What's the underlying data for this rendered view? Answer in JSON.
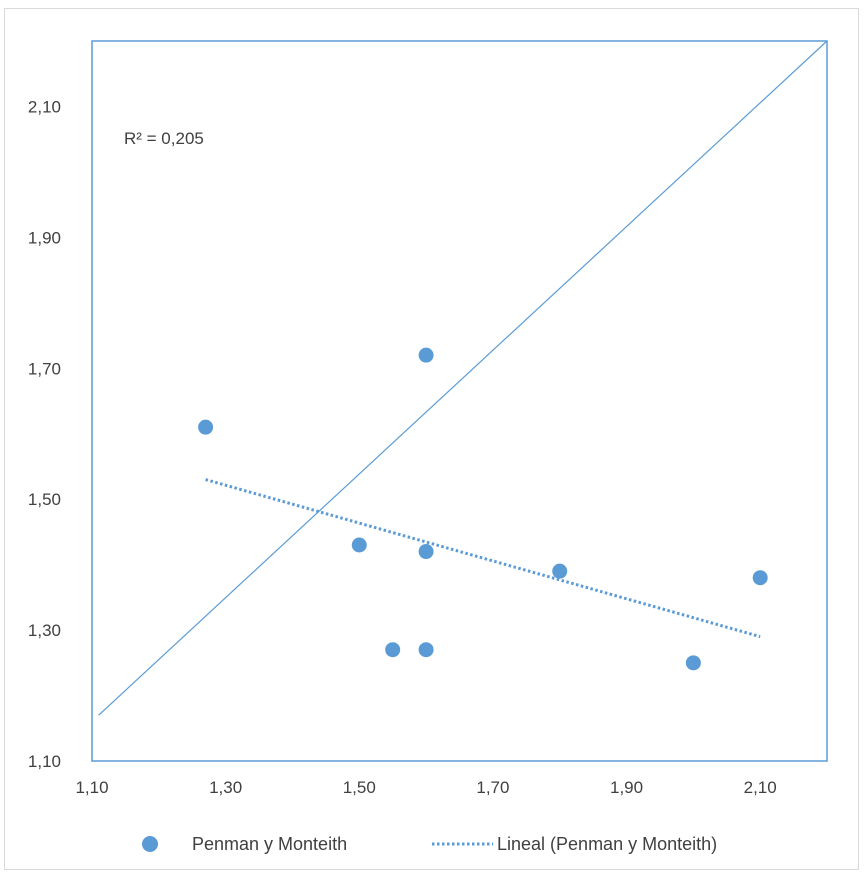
{
  "chart_data": {
    "type": "scatter",
    "xlim": [
      1.1,
      2.2
    ],
    "ylim": [
      1.1,
      2.2
    ],
    "x_ticks": [
      "1,10",
      "1,30",
      "1,50",
      "1,70",
      "1,90",
      "2,10"
    ],
    "x_tick_values": [
      1.1,
      1.3,
      1.5,
      1.7,
      1.9,
      2.1
    ],
    "y_ticks": [
      "1,10",
      "1,30",
      "1,50",
      "1,70",
      "1,90",
      "2,10"
    ],
    "y_tick_values": [
      1.1,
      1.3,
      1.5,
      1.7,
      1.9,
      2.1
    ],
    "grid": false,
    "legend_position": "bottom",
    "series": [
      {
        "name": "Penman y Monteith",
        "color": "#5b9bd5",
        "x": [
          1.27,
          1.5,
          1.55,
          1.6,
          1.6,
          1.6,
          1.8,
          2.0,
          2.1
        ],
        "y": [
          1.61,
          1.43,
          1.27,
          1.72,
          1.42,
          1.27,
          1.39,
          1.25,
          1.38
        ]
      }
    ],
    "trendline": {
      "name": "Lineal (Penman y Monteith)",
      "color": "#5b9bd5",
      "style": "dotted",
      "x": [
        1.27,
        2.1
      ],
      "y": [
        1.53,
        1.29
      ]
    },
    "reference_line": {
      "color": "#5b9bd5",
      "x": [
        1.11,
        2.2
      ],
      "y": [
        1.17,
        2.2
      ]
    },
    "annotation": "R² = 0,205"
  }
}
